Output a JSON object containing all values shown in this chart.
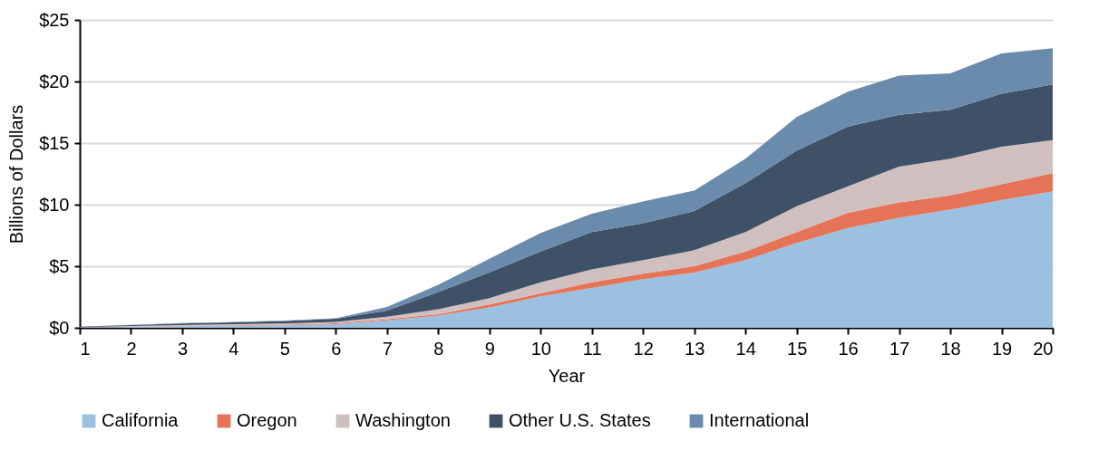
{
  "chart_data": {
    "type": "area",
    "stacked": true,
    "xlabel": "Year",
    "ylabel": "Billions of Dollars",
    "x": [
      1,
      2,
      3,
      4,
      5,
      6,
      7,
      8,
      9,
      10,
      11,
      12,
      13,
      14,
      15,
      16,
      17,
      18,
      19,
      20
    ],
    "xlim": [
      1,
      20
    ],
    "xticks": [
      1,
      2,
      3,
      4,
      5,
      6,
      7,
      8,
      9,
      10,
      11,
      12,
      13,
      14,
      15,
      16,
      17,
      18,
      19,
      20
    ],
    "ylim": [
      0,
      25
    ],
    "yticks": [
      {
        "value": 0,
        "label": "$0"
      },
      {
        "value": 5,
        "label": "$5"
      },
      {
        "value": 10,
        "label": "$10"
      },
      {
        "value": 15,
        "label": "$15"
      },
      {
        "value": 20,
        "label": "$20"
      },
      {
        "value": 25,
        "label": "$25"
      }
    ],
    "grid": "y",
    "legend": "bottom",
    "series": [
      {
        "name": "California",
        "color": "#9bc0e0",
        "values": [
          0.03,
          0.08,
          0.13,
          0.17,
          0.2,
          0.3,
          0.6,
          1.0,
          1.65,
          2.55,
          3.24,
          3.96,
          4.48,
          5.5,
          6.9,
          8.1,
          8.94,
          9.59,
          10.36,
          11.09
        ]
      },
      {
        "name": "Oregon",
        "color": "#e57357",
        "values": [
          0.01,
          0.02,
          0.03,
          0.04,
          0.05,
          0.06,
          0.1,
          0.1,
          0.25,
          0.25,
          0.46,
          0.44,
          0.52,
          0.7,
          0.87,
          1.23,
          1.24,
          1.16,
          1.3,
          1.47
        ]
      },
      {
        "name": "Washington",
        "color": "#d0bfbf",
        "values": [
          0.02,
          0.04,
          0.06,
          0.08,
          0.1,
          0.12,
          0.2,
          0.4,
          0.5,
          0.9,
          1.04,
          1.1,
          1.3,
          1.57,
          2.1,
          2.15,
          2.9,
          2.98,
          3.04,
          2.67
        ]
      },
      {
        "name": "Other U.S. States",
        "color": "#3f5166",
        "values": [
          0.03,
          0.08,
          0.13,
          0.15,
          0.2,
          0.25,
          0.5,
          1.4,
          2.1,
          2.5,
          3.03,
          3.0,
          3.18,
          3.97,
          4.53,
          4.87,
          4.22,
          3.97,
          4.3,
          4.54
        ]
      },
      {
        "name": "International",
        "color": "#6a8bab",
        "values": [
          0.01,
          0.02,
          0.03,
          0.03,
          0.04,
          0.05,
          0.3,
          0.6,
          1.1,
          1.5,
          1.5,
          1.76,
          1.66,
          1.99,
          2.72,
          2.82,
          3.17,
          2.97,
          3.28,
          2.93
        ]
      }
    ]
  }
}
